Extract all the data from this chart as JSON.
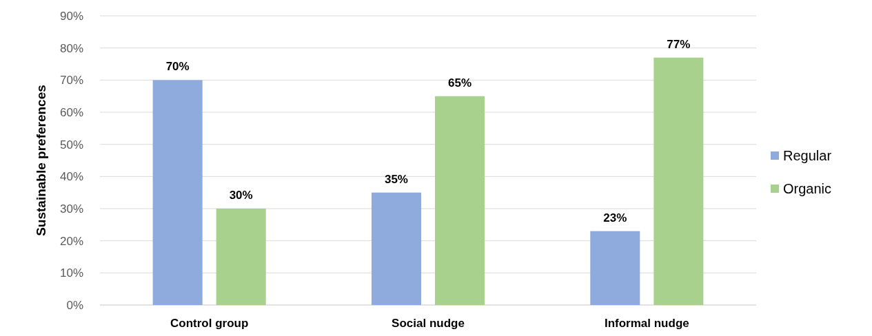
{
  "chart_data": {
    "type": "bar",
    "ylabel": "Sustainable preferences",
    "categories": [
      "Control group",
      "Social nudge",
      "Informal nudge"
    ],
    "series": [
      {
        "name": "Regular",
        "color": "#8faadc",
        "values": [
          70,
          35,
          23
        ],
        "value_labels": [
          "70%",
          "35%",
          "23%"
        ]
      },
      {
        "name": "Organic",
        "color": "#a9d18e",
        "values": [
          30,
          65,
          77
        ],
        "value_labels": [
          "30%",
          "65%",
          "77%"
        ]
      }
    ],
    "ylim": [
      0,
      90
    ],
    "yticks": [
      {
        "value": 0,
        "label": "0%"
      },
      {
        "value": 10,
        "label": "10%"
      },
      {
        "value": 20,
        "label": "20%"
      },
      {
        "value": 30,
        "label": "30%"
      },
      {
        "value": 40,
        "label": "40%"
      },
      {
        "value": 50,
        "label": "50%"
      },
      {
        "value": 60,
        "label": "60%"
      },
      {
        "value": 70,
        "label": "70%"
      },
      {
        "value": 80,
        "label": "80%"
      },
      {
        "value": 90,
        "label": "90%"
      }
    ],
    "grid": "y",
    "legend": "right"
  }
}
